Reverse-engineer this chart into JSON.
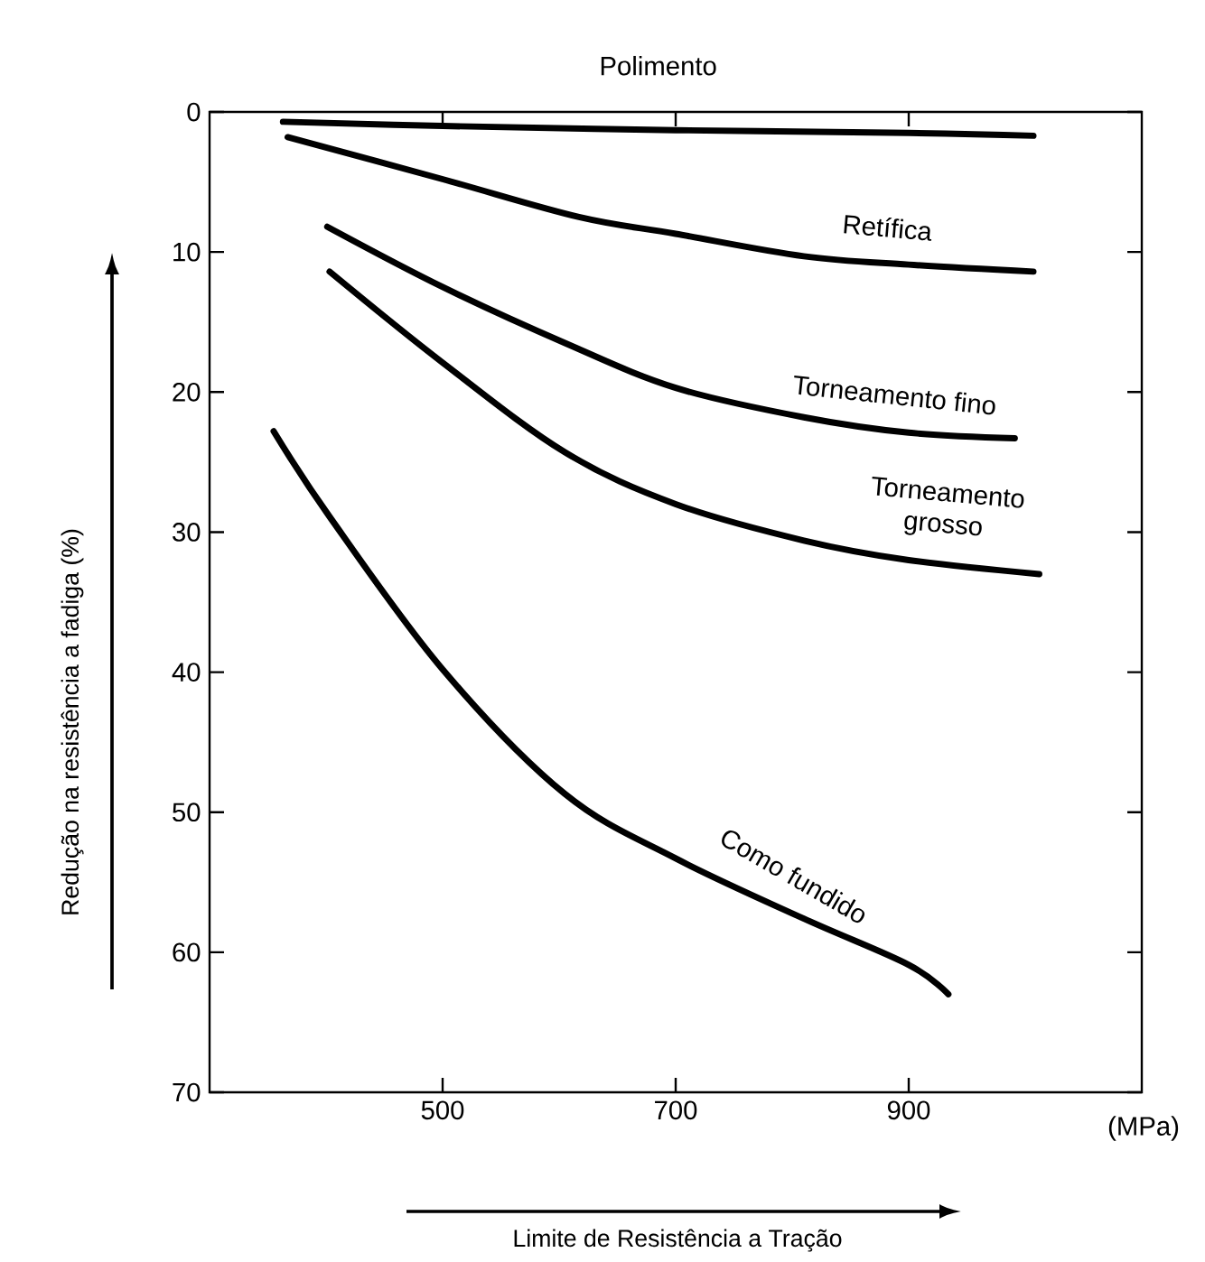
{
  "chart_data": {
    "type": "line",
    "xlabel": "Limite de Resistência a Tração",
    "ylabel": "Redução na resistência a fadiga    (%)",
    "xlim": [
      300,
      1100
    ],
    "xticks": [
      500,
      700,
      900
    ],
    "ylim": [
      70,
      0
    ],
    "yticks": [
      0,
      10,
      20,
      30,
      40,
      50,
      60,
      70
    ],
    "line_style": "solid",
    "grid": false,
    "annotations": [
      "(MPa)"
    ],
    "series": [
      {
        "name": "Polimento",
        "color": "#000000",
        "x": [
          363,
          500,
          700,
          900,
          1007
        ],
        "values": [
          0.7,
          1.0,
          1.3,
          1.5,
          1.7
        ]
      },
      {
        "name": "Retífica",
        "color": "#000000",
        "x": [
          367,
          500,
          617,
          700,
          810,
          900,
          1007
        ],
        "values": [
          1.8,
          4.8,
          7.5,
          8.7,
          10.3,
          10.9,
          11.4
        ]
      },
      {
        "name": "Torneamento fino",
        "color": "#000000",
        "x": [
          401,
          500,
          605,
          700,
          810,
          900,
          991
        ],
        "values": [
          8.2,
          12.5,
          16.5,
          19.7,
          21.8,
          22.9,
          23.3
        ]
      },
      {
        "name": "Torneamento grosso",
        "color": "#000000",
        "x": [
          403,
          500,
          605,
          700,
          810,
          900,
          1012
        ],
        "values": [
          11.4,
          17.9,
          24.3,
          28.0,
          30.6,
          32.0,
          33.0
        ]
      },
      {
        "name": "Como fundido",
        "color": "#000000",
        "x": [
          355,
          403,
          500,
          605,
          700,
          810,
          900,
          934
        ],
        "values": [
          22.8,
          28.9,
          39.8,
          48.7,
          53.3,
          57.6,
          60.9,
          63.0
        ]
      }
    ]
  }
}
